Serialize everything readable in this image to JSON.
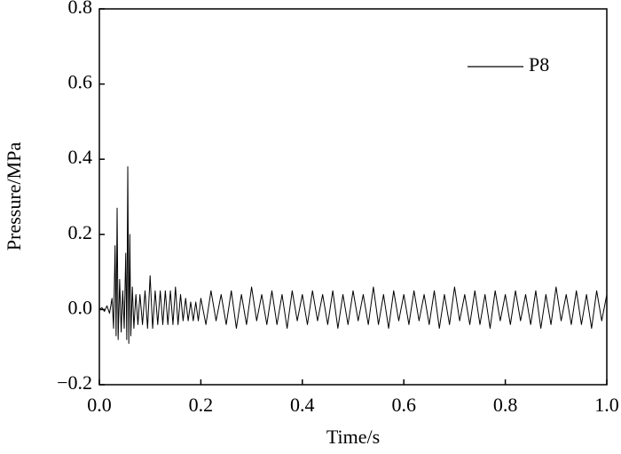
{
  "chart_data": {
    "type": "line",
    "xlabel": "Time/s",
    "ylabel": "Pressure/MPa",
    "xlim": [
      0,
      1
    ],
    "ylim": [
      -0.2,
      0.8
    ],
    "xticks": [
      {
        "value": 0,
        "label": "0.0"
      },
      {
        "value": 0.2,
        "label": "0.2"
      },
      {
        "value": 0.4,
        "label": "0.4"
      },
      {
        "value": 0.6,
        "label": "0.6"
      },
      {
        "value": 0.8,
        "label": "0.8"
      },
      {
        "value": 1,
        "label": "1.0"
      }
    ],
    "yticks": [
      {
        "value": -0.2,
        "label": "−0.2"
      },
      {
        "value": 0,
        "label": "0.0"
      },
      {
        "value": 0.2,
        "label": "0.2"
      },
      {
        "value": 0.4,
        "label": "0.4"
      },
      {
        "value": 0.6,
        "label": "0.6"
      },
      {
        "value": 0.8,
        "label": "0.8"
      }
    ],
    "legend": "top-right",
    "x": [
      0,
      0.005,
      0.01,
      0.015,
      0.02,
      0.025,
      0.028,
      0.031,
      0.033,
      0.035,
      0.037,
      0.04,
      0.043,
      0.046,
      0.049,
      0.052,
      0.054,
      0.056,
      0.058,
      0.06,
      0.062,
      0.065,
      0.068,
      0.072,
      0.076,
      0.08,
      0.085,
      0.09,
      0.095,
      0.1,
      0.105,
      0.11,
      0.115,
      0.12,
      0.125,
      0.13,
      0.135,
      0.14,
      0.145,
      0.15,
      0.155,
      0.16,
      0.165,
      0.17,
      0.175,
      0.18,
      0.185,
      0.19,
      0.195,
      0.2,
      0.21,
      0.22,
      0.23,
      0.24,
      0.25,
      0.26,
      0.27,
      0.28,
      0.29,
      0.3,
      0.31,
      0.32,
      0.33,
      0.34,
      0.35,
      0.36,
      0.37,
      0.38,
      0.39,
      0.4,
      0.41,
      0.42,
      0.43,
      0.44,
      0.45,
      0.46,
      0.47,
      0.48,
      0.49,
      0.5,
      0.51,
      0.52,
      0.53,
      0.54,
      0.55,
      0.56,
      0.57,
      0.58,
      0.59,
      0.6,
      0.61,
      0.62,
      0.63,
      0.64,
      0.65,
      0.66,
      0.67,
      0.68,
      0.69,
      0.7,
      0.71,
      0.72,
      0.73,
      0.74,
      0.75,
      0.76,
      0.77,
      0.78,
      0.79,
      0.8,
      0.81,
      0.82,
      0.83,
      0.84,
      0.85,
      0.86,
      0.87,
      0.88,
      0.89,
      0.9,
      0.91,
      0.92,
      0.93,
      0.94,
      0.95,
      0.96,
      0.97,
      0.98,
      0.99,
      1
    ],
    "series": [
      {
        "name": "P8",
        "color": "#000000",
        "values": [
          0,
          0.005,
          -0.005,
          0.01,
          -0.01,
          0.03,
          -0.05,
          0.17,
          -0.07,
          0.27,
          -0.08,
          0.08,
          -0.06,
          0.05,
          -0.05,
          0.15,
          -0.08,
          0.38,
          -0.09,
          0.2,
          -0.07,
          0.06,
          -0.05,
          0.04,
          -0.04,
          0.04,
          -0.04,
          0.05,
          -0.05,
          0.09,
          -0.05,
          0.05,
          -0.04,
          0.05,
          -0.04,
          0.05,
          -0.04,
          0.05,
          -0.04,
          0.06,
          -0.04,
          0.04,
          -0.03,
          0.03,
          -0.03,
          0.02,
          -0.03,
          0.02,
          -0.03,
          0.03,
          -0.04,
          0.05,
          -0.03,
          0.04,
          -0.04,
          0.05,
          -0.05,
          0.04,
          -0.04,
          0.06,
          -0.03,
          0.04,
          -0.04,
          0.05,
          -0.04,
          0.04,
          -0.05,
          0.05,
          -0.03,
          0.04,
          -0.04,
          0.05,
          -0.03,
          0.04,
          -0.04,
          0.05,
          -0.05,
          0.04,
          -0.04,
          0.05,
          -0.03,
          0.04,
          -0.04,
          0.06,
          -0.04,
          0.04,
          -0.05,
          0.05,
          -0.03,
          0.04,
          -0.04,
          0.05,
          -0.03,
          0.04,
          -0.04,
          0.05,
          -0.05,
          0.04,
          -0.04,
          0.06,
          -0.03,
          0.04,
          -0.04,
          0.05,
          -0.04,
          0.04,
          -0.05,
          0.05,
          -0.03,
          0.04,
          -0.04,
          0.05,
          -0.03,
          0.04,
          -0.04,
          0.05,
          -0.05,
          0.04,
          -0.04,
          0.06,
          -0.03,
          0.04,
          -0.04,
          0.05,
          -0.04,
          0.04,
          -0.05,
          0.05,
          -0.03,
          0.04
        ]
      }
    ]
  }
}
